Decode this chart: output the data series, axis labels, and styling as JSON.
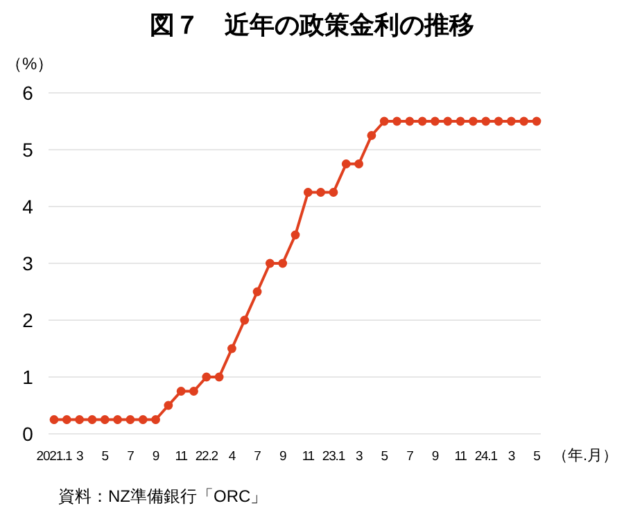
{
  "chart_data": {
    "type": "line",
    "title": "図７　近年の政策金利の推移",
    "ylabel": "（%）",
    "xlabel": "（年.月）",
    "annotations": [
      "資料：NZ準備銀行「ORC」"
    ],
    "categories": [
      "2021.1",
      null,
      "3",
      null,
      "5",
      null,
      "7",
      null,
      "9",
      null,
      "11",
      null,
      "22.2",
      null,
      "4",
      null,
      "7",
      null,
      "9",
      null,
      "11",
      null,
      "23.1",
      null,
      "3",
      null,
      "5",
      null,
      "7",
      null,
      "9",
      null,
      "11",
      null,
      "24.1",
      null,
      "3",
      null,
      "5"
    ],
    "series": [
      {
        "color": "#e0401f",
        "values": [
          0.25,
          0.25,
          0.25,
          0.25,
          0.25,
          0.25,
          0.25,
          0.25,
          0.25,
          0.5,
          0.75,
          0.75,
          1.0,
          1.0,
          1.5,
          2.0,
          2.5,
          3.0,
          3.0,
          3.5,
          4.25,
          4.25,
          4.25,
          4.75,
          4.75,
          5.25,
          5.5,
          5.5,
          5.5,
          5.5,
          5.5,
          5.5,
          5.5,
          5.5,
          5.5,
          5.5,
          5.5,
          5.5,
          5.5
        ]
      }
    ],
    "ylim": [
      0,
      6
    ],
    "yticks": [
      0,
      1,
      2,
      3,
      4,
      5,
      6
    ],
    "grid": "y",
    "marker": "circle",
    "line_style": "solid"
  }
}
